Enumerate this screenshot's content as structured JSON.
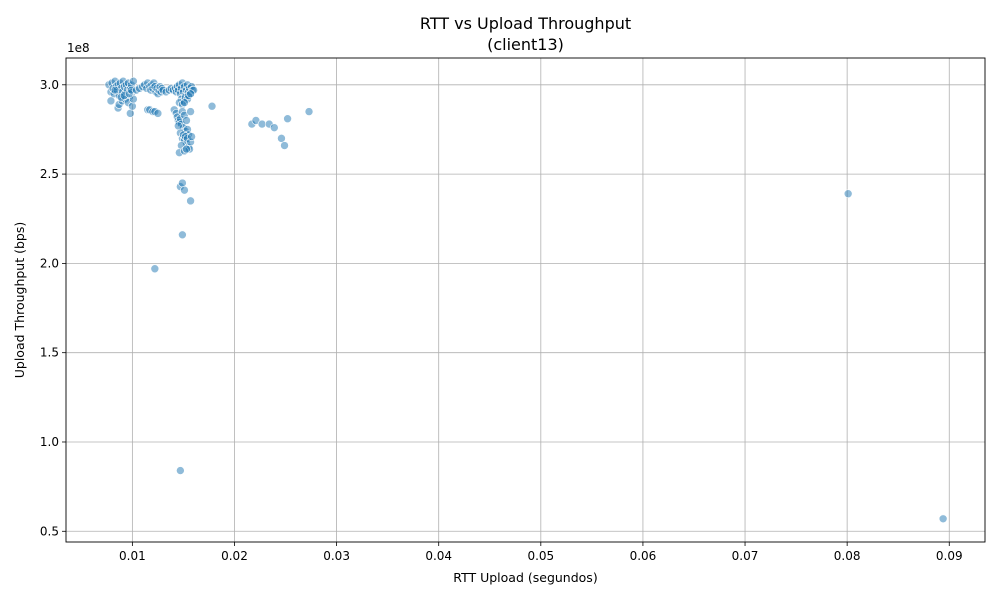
{
  "chart_data": {
    "type": "scatter",
    "title": "RTT vs Upload Throughput",
    "subtitle": "(client13)",
    "xlabel": "RTT Upload (segundos)",
    "ylabel": "Upload Throughput (bps)",
    "y_offset_label": "1e8",
    "xlim": [
      0.0035,
      0.0935
    ],
    "ylim": [
      0.44,
      3.15
    ],
    "x_ticks": [
      0.01,
      0.02,
      0.03,
      0.04,
      0.05,
      0.06,
      0.07,
      0.08,
      0.09
    ],
    "x_tick_labels": [
      "0.01",
      "0.02",
      "0.03",
      "0.04",
      "0.05",
      "0.06",
      "0.07",
      "0.08",
      "0.09"
    ],
    "y_ticks": [
      0.5,
      1.0,
      1.5,
      2.0,
      2.5,
      3.0
    ],
    "y_tick_labels": [
      "0.5",
      "1.0",
      "1.5",
      "2.0",
      "2.5",
      "3.0"
    ],
    "grid": true,
    "point_color": "#1f77b4",
    "point_alpha": 0.5,
    "points": [
      [
        0.0077,
        3.0
      ],
      [
        0.0079,
        2.96
      ],
      [
        0.008,
        3.01
      ],
      [
        0.0081,
        2.98
      ],
      [
        0.0082,
        2.95
      ],
      [
        0.0083,
        3.02
      ],
      [
        0.0084,
        2.99
      ],
      [
        0.0085,
        2.97
      ],
      [
        0.0086,
        3.0
      ],
      [
        0.0087,
        2.94
      ],
      [
        0.0088,
        3.01
      ],
      [
        0.0089,
        2.98
      ],
      [
        0.009,
        2.96
      ],
      [
        0.0091,
        3.02
      ],
      [
        0.0092,
        2.99
      ],
      [
        0.0093,
        2.95
      ],
      [
        0.0094,
        3.0
      ],
      [
        0.0095,
        2.97
      ],
      [
        0.0096,
        3.01
      ],
      [
        0.0097,
        2.93
      ],
      [
        0.0098,
        2.98
      ],
      [
        0.0099,
        3.0
      ],
      [
        0.01,
        2.96
      ],
      [
        0.0101,
        3.02
      ],
      [
        0.0079,
        2.91
      ],
      [
        0.0086,
        2.87
      ],
      [
        0.0087,
        2.89
      ],
      [
        0.009,
        2.91
      ],
      [
        0.0093,
        2.92
      ],
      [
        0.0096,
        2.9
      ],
      [
        0.0098,
        2.84
      ],
      [
        0.01,
        2.88
      ],
      [
        0.0101,
        2.92
      ],
      [
        0.0089,
        2.93
      ],
      [
        0.0083,
        2.97
      ],
      [
        0.0092,
        2.94
      ],
      [
        0.0097,
        2.95
      ],
      [
        0.0099,
        2.97
      ],
      [
        0.0104,
        2.97
      ],
      [
        0.0107,
        2.98
      ],
      [
        0.011,
        2.99
      ],
      [
        0.0112,
        3.0
      ],
      [
        0.0114,
        2.98
      ],
      [
        0.0115,
        3.01
      ],
      [
        0.0117,
        2.99
      ],
      [
        0.0118,
        2.97
      ],
      [
        0.0119,
        3.0
      ],
      [
        0.012,
        2.98
      ],
      [
        0.0121,
        3.01
      ],
      [
        0.0122,
        2.99
      ],
      [
        0.0123,
        2.96
      ],
      [
        0.0124,
        2.98
      ],
      [
        0.0125,
        2.95
      ],
      [
        0.0126,
        2.97
      ],
      [
        0.0127,
        2.99
      ],
      [
        0.0128,
        2.96
      ],
      [
        0.0129,
        2.98
      ],
      [
        0.013,
        2.97
      ],
      [
        0.0133,
        2.96
      ],
      [
        0.0136,
        2.97
      ],
      [
        0.0138,
        2.98
      ],
      [
        0.0115,
        2.86
      ],
      [
        0.0117,
        2.86
      ],
      [
        0.012,
        2.85
      ],
      [
        0.0122,
        2.85
      ],
      [
        0.0125,
        2.84
      ],
      [
        0.014,
        2.97
      ],
      [
        0.0142,
        2.98
      ],
      [
        0.0143,
        2.96
      ],
      [
        0.0144,
        2.99
      ],
      [
        0.0145,
        2.97
      ],
      [
        0.0146,
        3.0
      ],
      [
        0.0147,
        2.95
      ],
      [
        0.0148,
        2.98
      ],
      [
        0.0149,
        3.01
      ],
      [
        0.015,
        2.96
      ],
      [
        0.0151,
        2.99
      ],
      [
        0.0152,
        2.94
      ],
      [
        0.0153,
        2.97
      ],
      [
        0.0154,
        3.0
      ],
      [
        0.0155,
        2.96
      ],
      [
        0.0156,
        2.98
      ],
      [
        0.0157,
        2.95
      ],
      [
        0.0158,
        2.99
      ],
      [
        0.0159,
        2.97
      ],
      [
        0.016,
        2.97
      ],
      [
        0.0148,
        2.92
      ],
      [
        0.015,
        2.91
      ],
      [
        0.0152,
        2.93
      ],
      [
        0.0154,
        2.92
      ],
      [
        0.0146,
        2.9
      ],
      [
        0.0149,
        2.89
      ],
      [
        0.0151,
        2.9
      ],
      [
        0.0155,
        2.94
      ],
      [
        0.0157,
        2.95
      ],
      [
        0.0141,
        2.86
      ],
      [
        0.0143,
        2.84
      ],
      [
        0.0144,
        2.82
      ],
      [
        0.0145,
        2.8
      ],
      [
        0.0146,
        2.79
      ],
      [
        0.0147,
        2.81
      ],
      [
        0.0148,
        2.78
      ],
      [
        0.0149,
        2.85
      ],
      [
        0.015,
        2.76
      ],
      [
        0.0151,
        2.83
      ],
      [
        0.0152,
        2.74
      ],
      [
        0.0153,
        2.8
      ],
      [
        0.0154,
        2.75
      ],
      [
        0.0155,
        2.72
      ],
      [
        0.0157,
        2.85
      ],
      [
        0.0145,
        2.77
      ],
      [
        0.0147,
        2.73
      ],
      [
        0.0149,
        2.7
      ],
      [
        0.015,
        2.72
      ],
      [
        0.0151,
        2.69
      ],
      [
        0.0152,
        2.71
      ],
      [
        0.0153,
        2.67
      ],
      [
        0.0154,
        2.7
      ],
      [
        0.0155,
        2.65
      ],
      [
        0.0156,
        2.64
      ],
      [
        0.0157,
        2.68
      ],
      [
        0.0158,
        2.71
      ],
      [
        0.0148,
        2.66
      ],
      [
        0.0146,
        2.62
      ],
      [
        0.0151,
        2.63
      ],
      [
        0.0153,
        2.64
      ],
      [
        0.0147,
        2.43
      ],
      [
        0.0149,
        2.45
      ],
      [
        0.0151,
        2.41
      ],
      [
        0.0157,
        2.35
      ],
      [
        0.0149,
        2.16
      ],
      [
        0.0122,
        1.97
      ],
      [
        0.0147,
        0.84
      ],
      [
        0.0178,
        2.88
      ],
      [
        0.0217,
        2.78
      ],
      [
        0.0221,
        2.8
      ],
      [
        0.0227,
        2.78
      ],
      [
        0.0234,
        2.78
      ],
      [
        0.0239,
        2.76
      ],
      [
        0.0246,
        2.7
      ],
      [
        0.0249,
        2.66
      ],
      [
        0.0252,
        2.81
      ],
      [
        0.0273,
        2.85
      ],
      [
        0.0801,
        2.39
      ],
      [
        0.0894,
        0.57
      ]
    ]
  }
}
